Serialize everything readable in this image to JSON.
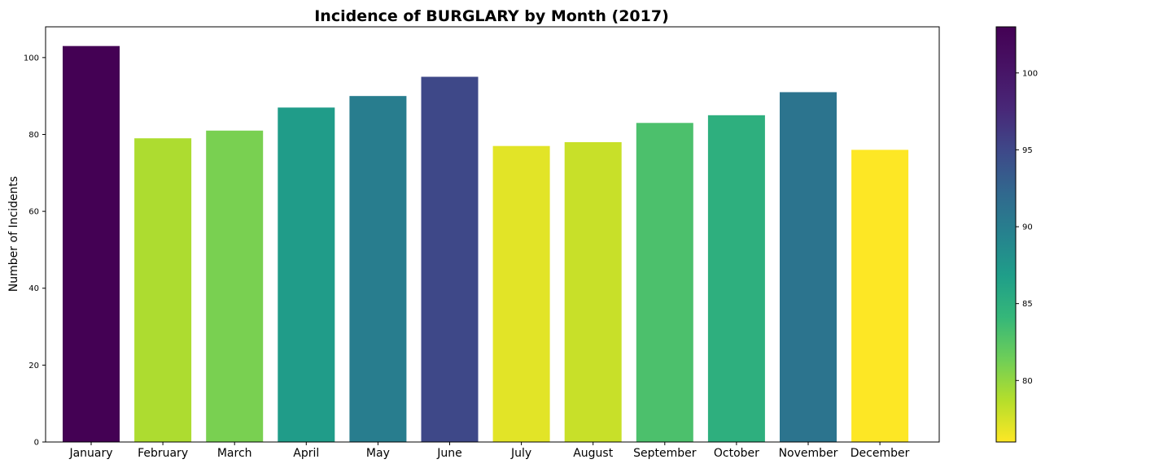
{
  "chart_data": {
    "type": "bar",
    "title": "Incidence of BURGLARY by Month (2017)",
    "xlabel": "",
    "ylabel": "Number of Incidents",
    "categories": [
      "January",
      "February",
      "March",
      "April",
      "May",
      "June",
      "July",
      "August",
      "September",
      "October",
      "November",
      "December"
    ],
    "values": [
      103,
      79,
      81,
      87,
      90,
      95,
      77,
      78,
      83,
      85,
      91,
      76
    ],
    "ylim": [
      0,
      108
    ],
    "yticks": [
      0,
      20,
      40,
      60,
      80,
      100
    ],
    "grid": false,
    "legend": "none",
    "colorbar": {
      "colormap": "viridis-reversed",
      "range": [
        76,
        103
      ],
      "ticks": [
        80,
        85,
        90,
        95,
        100
      ]
    }
  }
}
